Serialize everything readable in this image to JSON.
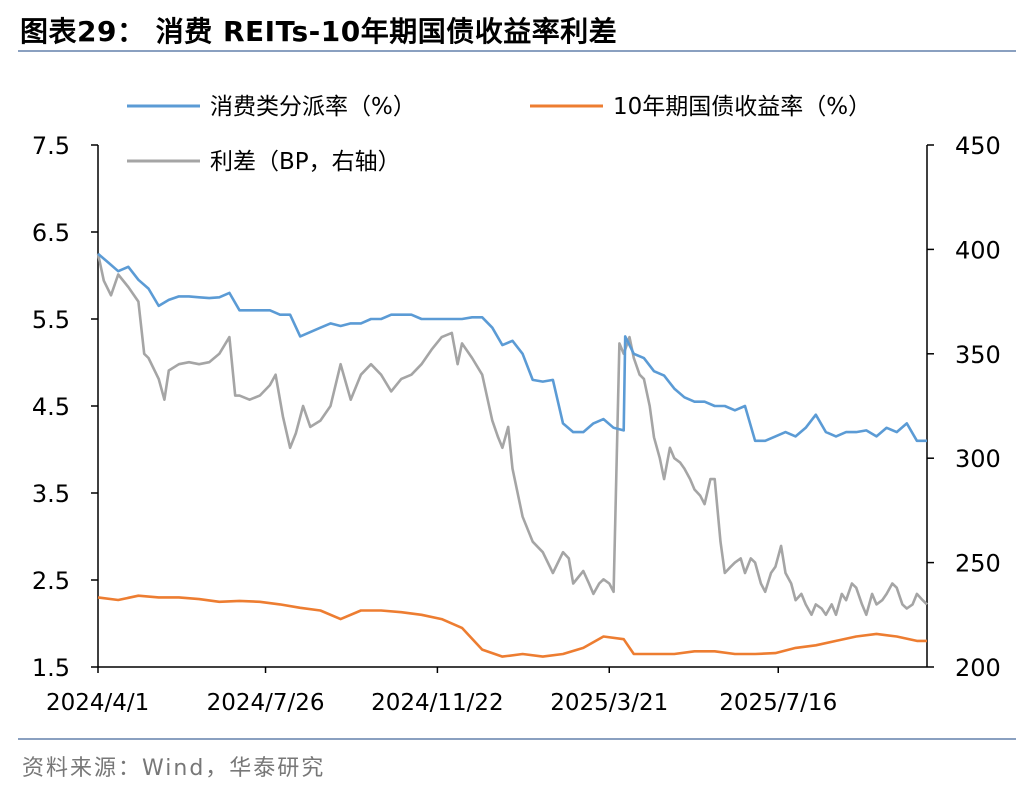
{
  "header": {
    "title": "图表29： 消费 REITs-10年期国债收益率利差"
  },
  "footer": {
    "source": "资料来源：Wind，华泰研究"
  },
  "colors": {
    "yield": "#5b9bd5",
    "bond": "#ed7d31",
    "spread": "#a5a5a5",
    "rule": "#8aa0c0"
  },
  "chart_data": {
    "type": "line",
    "title": "消费 REITs-10年期国债收益率利差",
    "grid": false,
    "legend_position": "top",
    "x_ticks": [
      "2024/4/1",
      "2024/7/26",
      "2024/11/22",
      "2025/3/21",
      "2025/7/16"
    ],
    "y_left": {
      "ylim": [
        1.5,
        7.5
      ],
      "ticks": [
        "7.5",
        "6.5",
        "5.5",
        "4.5",
        "3.5",
        "2.5",
        "1.5"
      ]
    },
    "y_right": {
      "ylim": [
        200,
        450
      ],
      "ticks": [
        "450",
        "400",
        "350",
        "300",
        "250",
        "200"
      ]
    },
    "series": [
      {
        "name": "消费类分派率（%）",
        "axis": "left",
        "color": "#5b9bd5",
        "points": [
          [
            "2024/4/1",
            6.25
          ],
          [
            "2024/4/8",
            6.15
          ],
          [
            "2024/4/15",
            6.05
          ],
          [
            "2024/4/22",
            6.1
          ],
          [
            "2024/4/29",
            5.95
          ],
          [
            "2024/5/6",
            5.85
          ],
          [
            "2024/5/13",
            5.65
          ],
          [
            "2024/5/20",
            5.72
          ],
          [
            "2024/5/27",
            5.76
          ],
          [
            "2024/6/3",
            5.76
          ],
          [
            "2024/6/10",
            5.75
          ],
          [
            "2024/6/17",
            5.74
          ],
          [
            "2024/6/24",
            5.75
          ],
          [
            "2024/7/1",
            5.8
          ],
          [
            "2024/7/8",
            5.6
          ],
          [
            "2024/7/15",
            5.6
          ],
          [
            "2024/7/22",
            5.6
          ],
          [
            "2024/7/29",
            5.6
          ],
          [
            "2024/8/5",
            5.55
          ],
          [
            "2024/8/12",
            5.55
          ],
          [
            "2024/8/19",
            5.3
          ],
          [
            "2024/8/26",
            5.35
          ],
          [
            "2024/9/2",
            5.4
          ],
          [
            "2024/9/9",
            5.45
          ],
          [
            "2024/9/16",
            5.42
          ],
          [
            "2024/9/23",
            5.45
          ],
          [
            "2024/9/30",
            5.45
          ],
          [
            "2024/10/7",
            5.5
          ],
          [
            "2024/10/14",
            5.5
          ],
          [
            "2024/10/21",
            5.55
          ],
          [
            "2024/10/28",
            5.55
          ],
          [
            "2024/11/4",
            5.55
          ],
          [
            "2024/11/11",
            5.5
          ],
          [
            "2024/11/18",
            5.5
          ],
          [
            "2024/11/25",
            5.5
          ],
          [
            "2024/12/2",
            5.5
          ],
          [
            "2024/12/9",
            5.5
          ],
          [
            "2024/12/16",
            5.52
          ],
          [
            "2024/12/23",
            5.52
          ],
          [
            "2024/12/30",
            5.4
          ],
          [
            "2025/1/6",
            5.2
          ],
          [
            "2025/1/13",
            5.25
          ],
          [
            "2025/1/20",
            5.1
          ],
          [
            "2025/1/27",
            4.8
          ],
          [
            "2025/2/3",
            4.78
          ],
          [
            "2025/2/10",
            4.8
          ],
          [
            "2025/2/17",
            4.3
          ],
          [
            "2025/2/24",
            4.2
          ],
          [
            "2025/3/3",
            4.2
          ],
          [
            "2025/3/10",
            4.3
          ],
          [
            "2025/3/17",
            4.35
          ],
          [
            "2025/3/24",
            4.25
          ],
          [
            "2025/3/31",
            4.22
          ],
          [
            "2025/4/1",
            5.3
          ],
          [
            "2025/4/7",
            5.1
          ],
          [
            "2025/4/14",
            5.05
          ],
          [
            "2025/4/21",
            4.9
          ],
          [
            "2025/4/28",
            4.85
          ],
          [
            "2025/5/5",
            4.7
          ],
          [
            "2025/5/12",
            4.6
          ],
          [
            "2025/5/19",
            4.55
          ],
          [
            "2025/5/26",
            4.55
          ],
          [
            "2025/6/2",
            4.5
          ],
          [
            "2025/6/9",
            4.5
          ],
          [
            "2025/6/16",
            4.45
          ],
          [
            "2025/6/23",
            4.5
          ],
          [
            "2025/6/30",
            4.1
          ],
          [
            "2025/7/7",
            4.1
          ],
          [
            "2025/7/14",
            4.15
          ],
          [
            "2025/7/21",
            4.2
          ],
          [
            "2025/7/28",
            4.15
          ],
          [
            "2025/8/4",
            4.25
          ],
          [
            "2025/8/11",
            4.4
          ],
          [
            "2025/8/18",
            4.2
          ],
          [
            "2025/8/25",
            4.15
          ],
          [
            "2025/9/1",
            4.2
          ],
          [
            "2025/9/8",
            4.2
          ],
          [
            "2025/9/15",
            4.22
          ],
          [
            "2025/9/22",
            4.15
          ],
          [
            "2025/9/29",
            4.25
          ],
          [
            "2025/10/6",
            4.2
          ],
          [
            "2025/10/13",
            4.3
          ],
          [
            "2025/10/20",
            4.1
          ],
          [
            "2025/10/27",
            4.1
          ]
        ]
      },
      {
        "name": "10年期国债收益率（%）",
        "axis": "left",
        "color": "#ed7d31",
        "points": [
          [
            "2024/4/1",
            2.3
          ],
          [
            "2024/4/15",
            2.27
          ],
          [
            "2024/4/29",
            2.32
          ],
          [
            "2024/5/13",
            2.3
          ],
          [
            "2024/5/27",
            2.3
          ],
          [
            "2024/6/10",
            2.28
          ],
          [
            "2024/6/24",
            2.25
          ],
          [
            "2024/7/8",
            2.26
          ],
          [
            "2024/7/22",
            2.25
          ],
          [
            "2024/8/5",
            2.22
          ],
          [
            "2024/8/19",
            2.18
          ],
          [
            "2024/9/2",
            2.15
          ],
          [
            "2024/9/16",
            2.05
          ],
          [
            "2024/9/30",
            2.15
          ],
          [
            "2024/10/14",
            2.15
          ],
          [
            "2024/10/28",
            2.13
          ],
          [
            "2024/11/11",
            2.1
          ],
          [
            "2024/11/25",
            2.05
          ],
          [
            "2024/12/9",
            1.95
          ],
          [
            "2024/12/23",
            1.7
          ],
          [
            "2025/1/6",
            1.62
          ],
          [
            "2025/1/20",
            1.65
          ],
          [
            "2025/2/3",
            1.62
          ],
          [
            "2025/2/17",
            1.65
          ],
          [
            "2025/3/3",
            1.72
          ],
          [
            "2025/3/17",
            1.85
          ],
          [
            "2025/3/31",
            1.82
          ],
          [
            "2025/4/7",
            1.65
          ],
          [
            "2025/4/21",
            1.65
          ],
          [
            "2025/5/5",
            1.65
          ],
          [
            "2025/5/19",
            1.68
          ],
          [
            "2025/6/2",
            1.68
          ],
          [
            "2025/6/16",
            1.65
          ],
          [
            "2025/6/30",
            1.65
          ],
          [
            "2025/7/14",
            1.66
          ],
          [
            "2025/7/28",
            1.72
          ],
          [
            "2025/8/11",
            1.75
          ],
          [
            "2025/8/25",
            1.8
          ],
          [
            "2025/9/8",
            1.85
          ],
          [
            "2025/9/22",
            1.88
          ],
          [
            "2025/10/6",
            1.85
          ],
          [
            "2025/10/20",
            1.8
          ],
          [
            "2025/10/27",
            1.8
          ]
        ]
      },
      {
        "name": "利差（BP，右轴）",
        "axis": "right",
        "color": "#a5a5a5",
        "points": [
          [
            "2024/4/1",
            398
          ],
          [
            "2024/4/5",
            385
          ],
          [
            "2024/4/10",
            378
          ],
          [
            "2024/4/15",
            388
          ],
          [
            "2024/4/22",
            382
          ],
          [
            "2024/4/29",
            375
          ],
          [
            "2024/5/3",
            350
          ],
          [
            "2024/5/6",
            348
          ],
          [
            "2024/5/13",
            338
          ],
          [
            "2024/5/17",
            328
          ],
          [
            "2024/5/20",
            342
          ],
          [
            "2024/5/27",
            345
          ],
          [
            "2024/6/3",
            346
          ],
          [
            "2024/6/10",
            345
          ],
          [
            "2024/6/17",
            346
          ],
          [
            "2024/6/24",
            350
          ],
          [
            "2024/7/1",
            358
          ],
          [
            "2024/7/5",
            330
          ],
          [
            "2024/7/8",
            330
          ],
          [
            "2024/7/15",
            328
          ],
          [
            "2024/7/22",
            330
          ],
          [
            "2024/7/29",
            335
          ],
          [
            "2024/8/2",
            340
          ],
          [
            "2024/8/7",
            320
          ],
          [
            "2024/8/12",
            305
          ],
          [
            "2024/8/16",
            312
          ],
          [
            "2024/8/21",
            325
          ],
          [
            "2024/8/26",
            315
          ],
          [
            "2024/9/2",
            318
          ],
          [
            "2024/9/9",
            325
          ],
          [
            "2024/9/16",
            345
          ],
          [
            "2024/9/23",
            328
          ],
          [
            "2024/9/30",
            340
          ],
          [
            "2024/10/7",
            345
          ],
          [
            "2024/10/14",
            340
          ],
          [
            "2024/10/21",
            332
          ],
          [
            "2024/10/28",
            338
          ],
          [
            "2024/11/4",
            340
          ],
          [
            "2024/11/11",
            345
          ],
          [
            "2024/11/18",
            352
          ],
          [
            "2024/11/25",
            358
          ],
          [
            "2024/12/2",
            360
          ],
          [
            "2024/12/6",
            345
          ],
          [
            "2024/12/9",
            355
          ],
          [
            "2024/12/16",
            348
          ],
          [
            "2024/12/23",
            340
          ],
          [
            "2024/12/30",
            318
          ],
          [
            "2025/1/3",
            310
          ],
          [
            "2025/1/6",
            305
          ],
          [
            "2025/1/10",
            315
          ],
          [
            "2025/1/13",
            295
          ],
          [
            "2025/1/20",
            272
          ],
          [
            "2025/1/27",
            260
          ],
          [
            "2025/2/3",
            255
          ],
          [
            "2025/2/10",
            245
          ],
          [
            "2025/2/17",
            255
          ],
          [
            "2025/2/21",
            252
          ],
          [
            "2025/2/24",
            240
          ],
          [
            "2025/3/3",
            246
          ],
          [
            "2025/3/7",
            240
          ],
          [
            "2025/3/10",
            235
          ],
          [
            "2025/3/14",
            240
          ],
          [
            "2025/3/17",
            242
          ],
          [
            "2025/3/21",
            240
          ],
          [
            "2025/3/24",
            236
          ],
          [
            "2025/3/28",
            355
          ],
          [
            "2025/3/31",
            350
          ],
          [
            "2025/4/4",
            358
          ],
          [
            "2025/4/7",
            348
          ],
          [
            "2025/4/11",
            340
          ],
          [
            "2025/4/14",
            338
          ],
          [
            "2025/4/18",
            325
          ],
          [
            "2025/4/21",
            310
          ],
          [
            "2025/4/25",
            300
          ],
          [
            "2025/4/28",
            290
          ],
          [
            "2025/5/2",
            305
          ],
          [
            "2025/5/5",
            300
          ],
          [
            "2025/5/9",
            298
          ],
          [
            "2025/5/12",
            295
          ],
          [
            "2025/5/16",
            290
          ],
          [
            "2025/5/19",
            285
          ],
          [
            "2025/5/23",
            282
          ],
          [
            "2025/5/26",
            278
          ],
          [
            "2025/5/30",
            290
          ],
          [
            "2025/6/2",
            290
          ],
          [
            "2025/6/6",
            260
          ],
          [
            "2025/6/9",
            245
          ],
          [
            "2025/6/13",
            248
          ],
          [
            "2025/6/16",
            250
          ],
          [
            "2025/6/20",
            252
          ],
          [
            "2025/6/23",
            245
          ],
          [
            "2025/6/27",
            252
          ],
          [
            "2025/6/30",
            250
          ],
          [
            "2025/7/4",
            240
          ],
          [
            "2025/7/7",
            236
          ],
          [
            "2025/7/11",
            245
          ],
          [
            "2025/7/14",
            248
          ],
          [
            "2025/7/18",
            258
          ],
          [
            "2025/7/21",
            245
          ],
          [
            "2025/7/25",
            240
          ],
          [
            "2025/7/28",
            232
          ],
          [
            "2025/8/1",
            235
          ],
          [
            "2025/8/4",
            230
          ],
          [
            "2025/8/8",
            225
          ],
          [
            "2025/8/11",
            230
          ],
          [
            "2025/8/15",
            228
          ],
          [
            "2025/8/18",
            225
          ],
          [
            "2025/8/22",
            230
          ],
          [
            "2025/8/25",
            225
          ],
          [
            "2025/8/29",
            235
          ],
          [
            "2025/9/1",
            232
          ],
          [
            "2025/9/5",
            240
          ],
          [
            "2025/9/8",
            238
          ],
          [
            "2025/9/12",
            230
          ],
          [
            "2025/9/15",
            225
          ],
          [
            "2025/9/19",
            235
          ],
          [
            "2025/9/22",
            230
          ],
          [
            "2025/9/26",
            232
          ],
          [
            "2025/9/29",
            235
          ],
          [
            "2025/10/3",
            240
          ],
          [
            "2025/10/6",
            238
          ],
          [
            "2025/10/10",
            230
          ],
          [
            "2025/10/13",
            228
          ],
          [
            "2025/10/17",
            230
          ],
          [
            "2025/10/20",
            235
          ],
          [
            "2025/10/24",
            232
          ],
          [
            "2025/10/27",
            230
          ]
        ]
      }
    ]
  }
}
